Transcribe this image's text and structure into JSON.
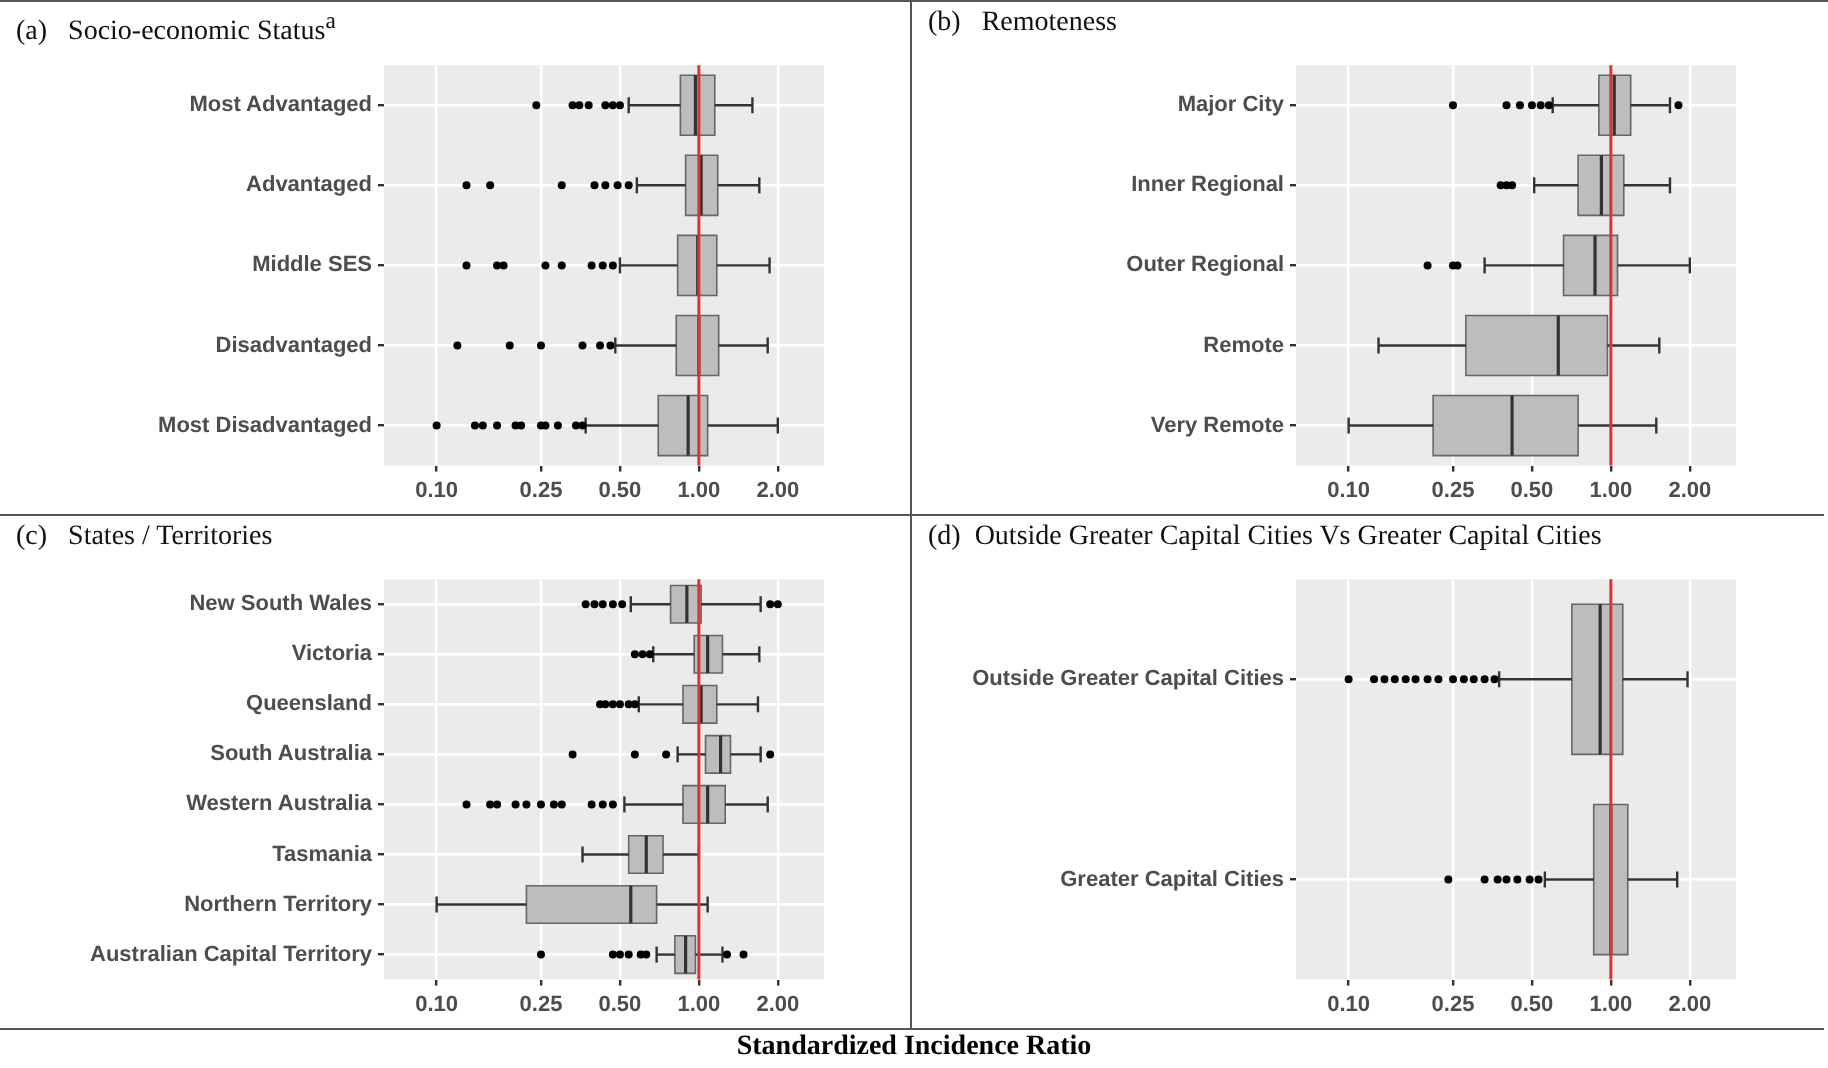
{
  "chart_data": [
    {
      "type": "box",
      "title": "(a)   Socio-economic Status$^{a}$",
      "orientation": "horizontal",
      "log": "x",
      "grid": true,
      "color": "#bdbdbd",
      "categories": [
        "Most Advantaged",
        "Advantaged",
        "Middle SES",
        "Disadvantaged",
        "Most Disadvantaged"
      ],
      "boxes": [
        {
          "low": 0.54,
          "q1": 0.85,
          "median": 0.97,
          "q3": 1.15,
          "high": 1.6,
          "outliers": [
            0.24,
            0.33,
            0.35,
            0.38,
            0.44,
            0.47,
            0.5
          ]
        },
        {
          "low": 0.58,
          "q1": 0.89,
          "median": 1.02,
          "q3": 1.18,
          "high": 1.7,
          "outliers": [
            0.13,
            0.16,
            0.3,
            0.4,
            0.44,
            0.49,
            0.54
          ]
        },
        {
          "low": 0.5,
          "q1": 0.83,
          "median": 0.99,
          "q3": 1.17,
          "high": 1.86,
          "outliers": [
            0.13,
            0.17,
            0.18,
            0.26,
            0.3,
            0.39,
            0.43,
            0.47
          ]
        },
        {
          "low": 0.48,
          "q1": 0.82,
          "median": 1.0,
          "q3": 1.19,
          "high": 1.83,
          "outliers": [
            0.12,
            0.19,
            0.25,
            0.36,
            0.42,
            0.46
          ]
        },
        {
          "low": 0.37,
          "q1": 0.7,
          "median": 0.91,
          "q3": 1.08,
          "high": 2.0,
          "outliers": [
            0.1,
            0.14,
            0.15,
            0.17,
            0.2,
            0.21,
            0.25,
            0.26,
            0.29,
            0.34,
            0.36
          ]
        }
      ],
      "xlim": [
        0.063,
        3.0
      ],
      "xticks": [
        {
          "value": 0.1,
          "label": "0.10"
        },
        {
          "value": 0.25,
          "label": "0.25"
        },
        {
          "value": 0.5,
          "label": "0.50"
        },
        {
          "value": 1,
          "label": "1.00"
        },
        {
          "value": 2,
          "label": "2.00"
        }
      ],
      "ref_lines": [
        {
          "axis": "x",
          "value": 1,
          "color": "#e03030"
        }
      ]
    },
    {
      "type": "box",
      "title": "(b)   Remoteness",
      "orientation": "horizontal",
      "log": "x",
      "grid": true,
      "color": "#bdbdbd",
      "categories": [
        "Major City",
        "Inner Regional",
        "Outer Regional",
        "Remote",
        "Very Remote"
      ],
      "boxes": [
        {
          "low": 0.6,
          "q1": 0.9,
          "median": 1.03,
          "q3": 1.19,
          "high": 1.68,
          "outliers": [
            0.25,
            0.4,
            0.45,
            0.5,
            0.54,
            0.58,
            1.81
          ]
        },
        {
          "low": 0.51,
          "q1": 0.75,
          "median": 0.92,
          "q3": 1.12,
          "high": 1.68,
          "outliers": [
            0.38,
            0.4,
            0.42
          ]
        },
        {
          "low": 0.33,
          "q1": 0.66,
          "median": 0.87,
          "q3": 1.06,
          "high": 2.0,
          "outliers": [
            0.2,
            0.25,
            0.26
          ]
        },
        {
          "low": 0.13,
          "q1": 0.28,
          "median": 0.63,
          "q3": 0.97,
          "high": 1.53
        },
        {
          "low": 0.1,
          "q1": 0.21,
          "median": 0.42,
          "q3": 0.75,
          "high": 1.49
        }
      ],
      "xlim": [
        0.063,
        3.0
      ],
      "xticks": [
        {
          "value": 0.1,
          "label": "0.10"
        },
        {
          "value": 0.25,
          "label": "0.25"
        },
        {
          "value": 0.5,
          "label": "0.50"
        },
        {
          "value": 1,
          "label": "1.00"
        },
        {
          "value": 2,
          "label": "2.00"
        }
      ],
      "ref_lines": [
        {
          "axis": "x",
          "value": 1,
          "color": "#e03030"
        }
      ]
    },
    {
      "type": "box",
      "title": "(c)   States / Territories",
      "xlabel": "Standardized Incidence Ratio",
      "orientation": "horizontal",
      "log": "x",
      "grid": true,
      "color": "#bdbdbd",
      "categories": [
        "New South Wales",
        "Victoria",
        "Queensland",
        "South Australia",
        "Western Australia",
        "Tasmania",
        "Northern Territory",
        "Australian Capital Territory"
      ],
      "boxes": [
        {
          "low": 0.55,
          "q1": 0.78,
          "median": 0.9,
          "q3": 1.02,
          "high": 1.72,
          "outliers": [
            0.37,
            0.4,
            0.43,
            0.47,
            0.51,
            1.87,
            2.0
          ]
        },
        {
          "low": 0.67,
          "q1": 0.96,
          "median": 1.08,
          "q3": 1.23,
          "high": 1.7,
          "outliers": [
            0.57,
            0.61,
            0.65
          ]
        },
        {
          "low": 0.59,
          "q1": 0.87,
          "median": 1.02,
          "q3": 1.17,
          "high": 1.68,
          "outliers": [
            0.42,
            0.44,
            0.47,
            0.5,
            0.54,
            0.57
          ]
        },
        {
          "low": 0.83,
          "q1": 1.06,
          "median": 1.21,
          "q3": 1.32,
          "high": 1.72,
          "outliers": [
            0.33,
            0.57,
            0.75,
            1.87
          ]
        },
        {
          "low": 0.52,
          "q1": 0.87,
          "median": 1.08,
          "q3": 1.26,
          "high": 1.83,
          "outliers": [
            0.13,
            0.16,
            0.17,
            0.2,
            0.22,
            0.25,
            0.28,
            0.3,
            0.39,
            0.43,
            0.47
          ]
        },
        {
          "low": 0.36,
          "q1": 0.54,
          "median": 0.63,
          "q3": 0.73,
          "high": 1.0
        },
        {
          "low": 0.1,
          "q1": 0.22,
          "median": 0.55,
          "q3": 0.69,
          "high": 1.08
        },
        {
          "low": 0.69,
          "q1": 0.81,
          "median": 0.89,
          "q3": 0.97,
          "high": 1.23,
          "outliers": [
            0.25,
            0.47,
            0.5,
            0.54,
            0.6,
            0.63,
            1.28,
            1.48
          ]
        }
      ],
      "xlim": [
        0.063,
        3.0
      ],
      "xticks": [
        {
          "value": 0.1,
          "label": "0.10"
        },
        {
          "value": 0.25,
          "label": "0.25"
        },
        {
          "value": 0.5,
          "label": "0.50"
        },
        {
          "value": 1,
          "label": "1.00"
        },
        {
          "value": 2,
          "label": "2.00"
        }
      ],
      "ref_lines": [
        {
          "axis": "x",
          "value": 1,
          "color": "#e03030"
        }
      ]
    },
    {
      "type": "box",
      "title": "(d)  Outside Greater Capital Cities Vs Greater Capital Cities",
      "orientation": "horizontal",
      "log": "x",
      "grid": true,
      "color": "#bdbdbd",
      "categories": [
        "Outside Greater Capital Cities",
        "Greater Capital Cities"
      ],
      "boxes": [
        {
          "low": 0.375,
          "q1": 0.71,
          "median": 0.91,
          "q3": 1.11,
          "high": 1.96,
          "outliers": [
            0.1,
            0.125,
            0.137,
            0.15,
            0.165,
            0.18,
            0.2,
            0.22,
            0.25,
            0.275,
            0.3,
            0.33,
            0.36
          ]
        },
        {
          "low": 0.56,
          "q1": 0.86,
          "median": 1.0,
          "q3": 1.16,
          "high": 1.79,
          "outliers": [
            0.24,
            0.33,
            0.37,
            0.4,
            0.44,
            0.49,
            0.53
          ]
        }
      ],
      "xlim": [
        0.063,
        3.0
      ],
      "xticks": [
        {
          "value": 0.1,
          "label": "0.10"
        },
        {
          "value": 0.25,
          "label": "0.25"
        },
        {
          "value": 0.5,
          "label": "0.50"
        },
        {
          "value": 1,
          "label": "1.00"
        },
        {
          "value": 2,
          "label": "2.00"
        }
      ],
      "ref_lines": [
        {
          "axis": "x",
          "value": 1,
          "color": "#e03030"
        }
      ]
    }
  ]
}
